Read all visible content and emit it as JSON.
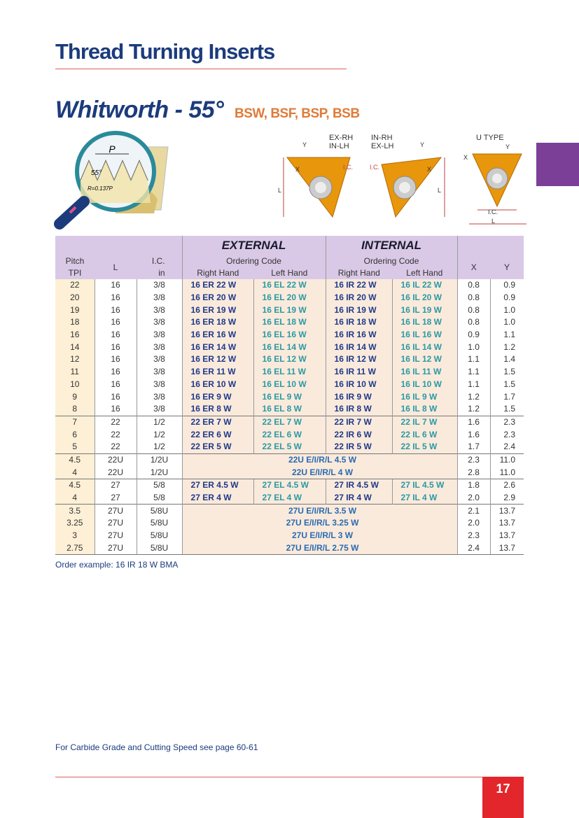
{
  "header": {
    "title": "Thread Turning Inserts"
  },
  "section": {
    "title": "Whitworth - 55°",
    "subtitle": "BSW, BSF, BSP, BSB"
  },
  "diagram_left": {
    "pitch": "P",
    "angle": "55°",
    "radius": "R=0.137P"
  },
  "diagram_mid": {
    "left_title_1": "EX-RH",
    "left_title_2": "IN-LH",
    "right_title_1": "IN-RH",
    "right_title_2": "EX-LH",
    "y": "Y",
    "x": "X",
    "ic": "I.C.",
    "l": "L"
  },
  "diagram_right": {
    "title": "U TYPE",
    "x": "X",
    "y": "Y",
    "ic": "I.C.",
    "l": "L"
  },
  "table": {
    "head": {
      "pitch": "Pitch",
      "tpi": "TPI",
      "l": "L",
      "ic": "I.C.",
      "ic_unit": "in",
      "external": "EXTERNAL",
      "internal": "INTERNAL",
      "ordering": "Ordering Code",
      "right": "Right Hand",
      "left": "Left Hand",
      "x": "X",
      "y": "Y"
    },
    "rows": [
      [
        "22",
        "16",
        "3/8",
        "16 ER 22 W",
        "16 EL 22 W",
        "16 IR 22 W",
        "16 IL 22 W",
        "0.8",
        "0.9"
      ],
      [
        "20",
        "16",
        "3/8",
        "16 ER 20 W",
        "16 EL 20 W",
        "16 IR 20 W",
        "16 IL 20 W",
        "0.8",
        "0.9"
      ],
      [
        "19",
        "16",
        "3/8",
        "16 ER 19 W",
        "16 EL 19 W",
        "16 IR 19 W",
        "16 IL 19 W",
        "0.8",
        "1.0"
      ],
      [
        "18",
        "16",
        "3/8",
        "16 ER 18 W",
        "16 EL 18 W",
        "16 IR 18 W",
        "16 IL 18 W",
        "0.8",
        "1.0"
      ],
      [
        "16",
        "16",
        "3/8",
        "16 ER 16 W",
        "16 EL 16 W",
        "16 IR 16 W",
        "16 IL 16 W",
        "0.9",
        "1.1"
      ],
      [
        "14",
        "16",
        "3/8",
        "16 ER 14 W",
        "16 EL 14 W",
        "16 IR 14 W",
        "16 IL 14 W",
        "1.0",
        "1.2"
      ],
      [
        "12",
        "16",
        "3/8",
        "16 ER 12 W",
        "16 EL 12 W",
        "16 IR 12 W",
        "16 IL 12 W",
        "1.1",
        "1.4"
      ],
      [
        "11",
        "16",
        "3/8",
        "16 ER 11 W",
        "16 EL 11 W",
        "16 IR 11 W",
        "16 IL 11 W",
        "1.1",
        "1.5"
      ],
      [
        "10",
        "16",
        "3/8",
        "16 ER 10 W",
        "16 EL 10 W",
        "16 IR 10 W",
        "16 IL 10 W",
        "1.1",
        "1.5"
      ],
      [
        "9",
        "16",
        "3/8",
        "16 ER 9 W",
        "16 EL 9 W",
        "16 IR 9 W",
        "16 IL 9 W",
        "1.2",
        "1.7"
      ],
      [
        "8",
        "16",
        "3/8",
        "16 ER 8 W",
        "16 EL 8 W",
        "16 IR 8 W",
        "16 IL 8 W",
        "1.2",
        "1.5"
      ],
      [
        "7",
        "22",
        "1/2",
        "22 ER 7 W",
        "22 EL 7 W",
        "22 IR 7 W",
        "22 IL 7 W",
        "1.6",
        "2.3"
      ],
      [
        "6",
        "22",
        "1/2",
        "22 ER 6 W",
        "22 EL 6 W",
        "22 IR 6 W",
        "22 IL 6 W",
        "1.6",
        "2.3"
      ],
      [
        "5",
        "22",
        "1/2",
        "22 ER 5 W",
        "22 EL 5 W",
        "22 IR 5 W",
        "22 IL 5 W",
        "1.7",
        "2.4"
      ],
      [
        "4.5",
        "22U",
        "1/2U",
        "22U E/I/R/L 4.5 W",
        "2.3",
        "11.0"
      ],
      [
        "4",
        "22U",
        "1/2U",
        "22U E/I/R/L 4 W",
        "2.8",
        "11.0"
      ],
      [
        "4.5",
        "27",
        "5/8",
        "27 ER 4.5 W",
        "27 EL 4.5 W",
        "27 IR 4.5 W",
        "27 IL 4.5 W",
        "1.8",
        "2.6"
      ],
      [
        "4",
        "27",
        "5/8",
        "27 ER 4 W",
        "27 EL 4 W",
        "27 IR 4 W",
        "27 IL 4 W",
        "2.0",
        "2.9"
      ],
      [
        "3.5",
        "27U",
        "5/8U",
        "27U E/I/R/L 3.5 W",
        "2.1",
        "13.7"
      ],
      [
        "3.25",
        "27U",
        "5/8U",
        "27U E/I/R/L 3.25 W",
        "2.0",
        "13.7"
      ],
      [
        "3",
        "27U",
        "5/8U",
        "27U E/I/R/L 3 W",
        "2.3",
        "13.7"
      ],
      [
        "2.75",
        "27U",
        "5/8U",
        "27U E/I/R/L 2.75 W",
        "2.4",
        "13.7"
      ]
    ]
  },
  "order_example": "Order example: 16 IR 18 W BMA",
  "footer": {
    "note": "For Carbide Grade and Cutting Speed see page 60-61",
    "page": "17"
  }
}
